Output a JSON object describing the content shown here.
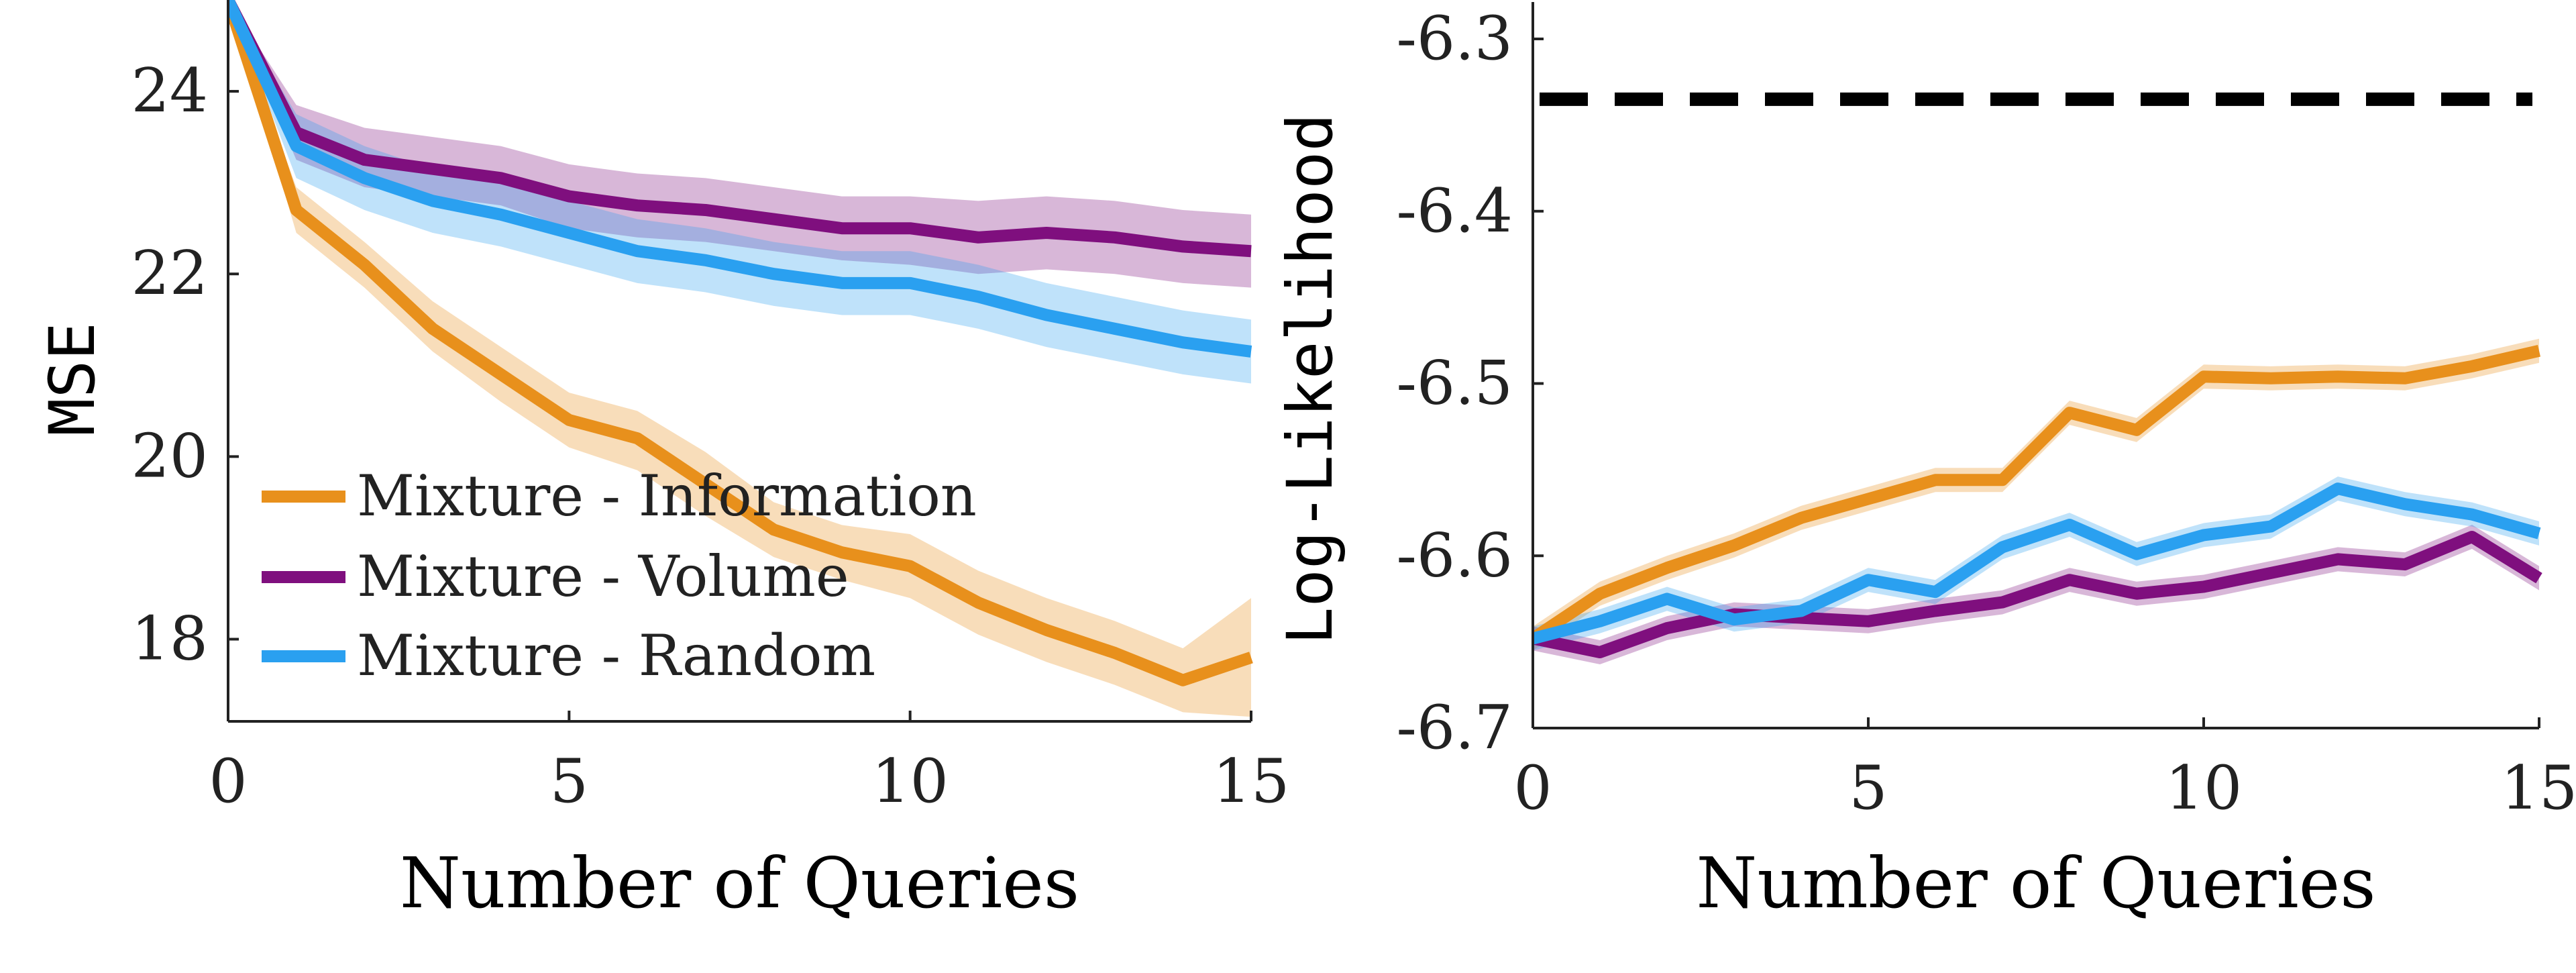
{
  "chart_data": [
    {
      "type": "line",
      "title": "",
      "xlabel": "Number of Queries",
      "ylabel": "MSE",
      "xlim": [
        0,
        15
      ],
      "ylim": [
        17.1,
        25
      ],
      "xticks": [
        0,
        5,
        10,
        15
      ],
      "yticks": [
        18,
        20,
        22,
        24
      ],
      "xtick_labels": [
        "0",
        "5",
        "10",
        "15"
      ],
      "ytick_labels": [
        "18",
        "20",
        "22",
        "24"
      ],
      "grid": false,
      "legend_position": "bottom-left",
      "x": [
        0,
        1,
        2,
        3,
        4,
        5,
        6,
        7,
        8,
        9,
        10,
        11,
        12,
        13,
        14,
        15
      ],
      "series": [
        {
          "name": "Mixture - Information",
          "color": "#E8901C",
          "values": [
            25.0,
            22.7,
            22.1,
            21.4,
            20.9,
            20.4,
            20.2,
            19.7,
            19.2,
            18.95,
            18.8,
            18.4,
            18.1,
            17.85,
            17.55,
            17.8
          ],
          "lower": [
            25.0,
            22.45,
            21.85,
            21.15,
            20.6,
            20.1,
            19.85,
            19.35,
            18.9,
            18.65,
            18.45,
            18.05,
            17.75,
            17.5,
            17.2,
            17.15
          ],
          "upper": [
            25.0,
            22.95,
            22.35,
            21.7,
            21.2,
            20.7,
            20.5,
            20.05,
            19.5,
            19.25,
            19.15,
            18.75,
            18.45,
            18.2,
            17.9,
            18.45
          ]
        },
        {
          "name": "Mixture - Volume",
          "color": "#7F0F7E",
          "values": [
            25.0,
            23.55,
            23.25,
            23.15,
            23.05,
            22.85,
            22.75,
            22.7,
            22.6,
            22.5,
            22.5,
            22.4,
            22.45,
            22.4,
            22.3,
            22.25
          ],
          "lower": [
            25.0,
            23.25,
            22.95,
            22.85,
            22.75,
            22.5,
            22.4,
            22.35,
            22.25,
            22.15,
            22.1,
            22.0,
            22.05,
            22.0,
            21.9,
            21.85
          ],
          "upper": [
            25.0,
            23.85,
            23.6,
            23.5,
            23.4,
            23.2,
            23.1,
            23.05,
            22.95,
            22.85,
            22.85,
            22.8,
            22.85,
            22.8,
            22.7,
            22.65
          ]
        },
        {
          "name": "Mixture - Random",
          "color": "#2AA0F0",
          "values": [
            25.0,
            23.4,
            23.05,
            22.8,
            22.65,
            22.45,
            22.25,
            22.15,
            22.0,
            21.9,
            21.9,
            21.75,
            21.55,
            21.4,
            21.25,
            21.15
          ],
          "lower": [
            25.0,
            23.05,
            22.7,
            22.45,
            22.3,
            22.1,
            21.9,
            21.8,
            21.65,
            21.55,
            21.55,
            21.4,
            21.2,
            21.05,
            20.9,
            20.8
          ],
          "upper": [
            25.0,
            23.75,
            23.4,
            23.15,
            23.0,
            22.8,
            22.6,
            22.5,
            22.35,
            22.25,
            22.25,
            22.1,
            21.9,
            21.75,
            21.6,
            21.5
          ]
        }
      ]
    },
    {
      "type": "line",
      "title": "",
      "xlabel": "Number of Queries",
      "ylabel": "Log-Likelihood",
      "xlim": [
        0,
        15
      ],
      "ylim": [
        -6.7,
        -6.3
      ],
      "xticks": [
        0,
        5,
        10,
        15
      ],
      "yticks": [
        -6.3,
        -6.4,
        -6.5,
        -6.6,
        -6.7
      ],
      "xtick_labels": [
        "0",
        "5",
        "10",
        "15"
      ],
      "ytick_labels": [
        "-6.3",
        "-6.4",
        "-6.5",
        "-6.6",
        "-6.7"
      ],
      "grid": false,
      "reference_line": {
        "value": -6.335,
        "style": "dashed",
        "color": "#000000"
      },
      "x": [
        0,
        1,
        2,
        3,
        4,
        5,
        6,
        7,
        8,
        9,
        10,
        11,
        12,
        13,
        14,
        15
      ],
      "series": [
        {
          "name": "Mixture - Information",
          "color": "#E8901C",
          "values": [
            -6.648,
            -6.622,
            -6.607,
            -6.594,
            -6.578,
            -6.567,
            -6.556,
            -6.556,
            -6.517,
            -6.527,
            -6.496,
            -6.497,
            -6.496,
            -6.497,
            -6.49,
            -6.481
          ],
          "band": 0.007
        },
        {
          "name": "Mixture - Volume",
          "color": "#7F0F7E",
          "values": [
            -6.648,
            -6.656,
            -6.642,
            -6.634,
            -6.636,
            -6.638,
            -6.632,
            -6.627,
            -6.614,
            -6.622,
            -6.618,
            -6.61,
            -6.602,
            -6.605,
            -6.589,
            -6.613
          ],
          "band": 0.007
        },
        {
          "name": "Mixture - Random",
          "color": "#2AA0F0",
          "values": [
            -6.648,
            -6.638,
            -6.625,
            -6.637,
            -6.632,
            -6.614,
            -6.621,
            -6.595,
            -6.582,
            -6.599,
            -6.588,
            -6.583,
            -6.561,
            -6.57,
            -6.576,
            -6.587
          ],
          "band": 0.007
        }
      ]
    }
  ]
}
